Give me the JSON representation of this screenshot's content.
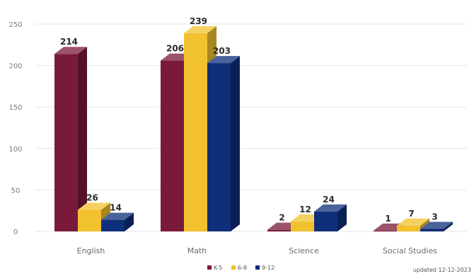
{
  "chart_data": {
    "type": "bar",
    "categories": [
      "English",
      "Math",
      "Science",
      "Social Studies"
    ],
    "series": [
      {
        "name": "K-5",
        "color": "#7a1a3a",
        "values": [
          214,
          206,
          2,
          1
        ]
      },
      {
        "name": "6-8",
        "color": "#f2c12e",
        "values": [
          26,
          239,
          12,
          7
        ]
      },
      {
        "name": "9-12",
        "color": "#0f2f7a",
        "values": [
          14,
          203,
          24,
          3
        ]
      }
    ],
    "ylim": [
      0,
      250
    ],
    "yticks": [
      0,
      50,
      100,
      150,
      200,
      250
    ],
    "grid": true,
    "legend_position": "bottom-center",
    "style": "3d-bar"
  },
  "note": "updated 12-12-2023"
}
